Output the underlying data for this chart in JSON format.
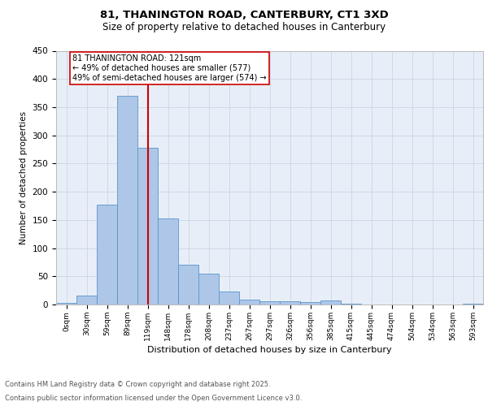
{
  "title1": "81, THANINGTON ROAD, CANTERBURY, CT1 3XD",
  "title2": "Size of property relative to detached houses in Canterbury",
  "xlabel": "Distribution of detached houses by size in Canterbury",
  "ylabel": "Number of detached properties",
  "bar_labels": [
    "0sqm",
    "30sqm",
    "59sqm",
    "89sqm",
    "119sqm",
    "148sqm",
    "178sqm",
    "208sqm",
    "237sqm",
    "267sqm",
    "297sqm",
    "326sqm",
    "356sqm",
    "385sqm",
    "415sqm",
    "445sqm",
    "474sqm",
    "504sqm",
    "534sqm",
    "563sqm",
    "593sqm"
  ],
  "bar_values": [
    3,
    16,
    177,
    370,
    278,
    153,
    71,
    55,
    23,
    9,
    6,
    6,
    5,
    7,
    1,
    0,
    0,
    0,
    0,
    0,
    2
  ],
  "bar_color": "#aec6e8",
  "bar_edge_color": "#5a96c8",
  "grid_color": "#d0d8e8",
  "background_color": "#e8eef8",
  "vline_x": 4,
  "vline_color": "#cc0000",
  "annotation_text": "81 THANINGTON ROAD: 121sqm\n← 49% of detached houses are smaller (577)\n49% of semi-detached houses are larger (574) →",
  "annotation_box_color": "#ffffff",
  "annotation_box_edge": "#cc0000",
  "ylim": [
    0,
    450
  ],
  "yticks": [
    0,
    50,
    100,
    150,
    200,
    250,
    300,
    350,
    400,
    450
  ],
  "footer_line1": "Contains HM Land Registry data © Crown copyright and database right 2025.",
  "footer_line2": "Contains public sector information licensed under the Open Government Licence v3.0."
}
